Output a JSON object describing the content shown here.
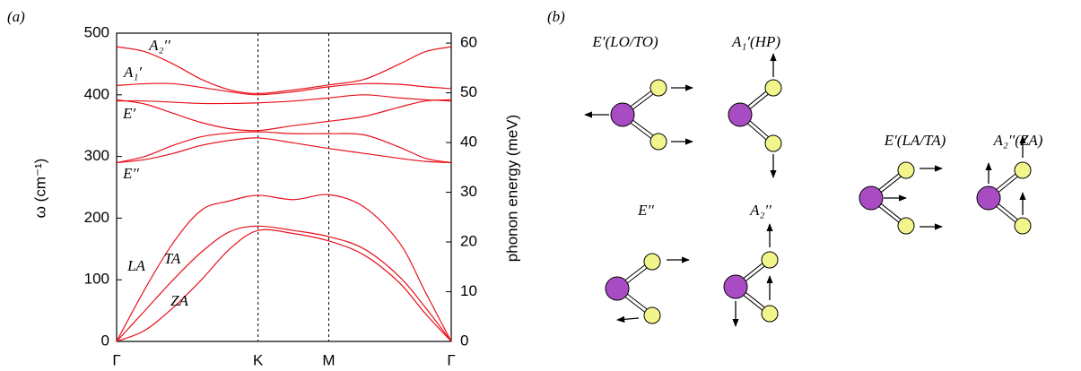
{
  "chart_data": {
    "type": "line",
    "panel_label": "(a)",
    "ylabel": "ω (cm⁻¹)",
    "y2label": "phonon energy (meV)",
    "x": [
      0,
      0.4,
      0.8,
      1.2,
      1.6,
      2,
      2.5,
      3,
      3.5,
      4,
      4.366,
      4.732
    ],
    "xlim": [
      0,
      4.732
    ],
    "xticks": [
      {
        "value": 0,
        "label": "Γ"
      },
      {
        "value": 2,
        "label": "K"
      },
      {
        "value": 3,
        "label": "M"
      },
      {
        "value": 4.732,
        "label": "Γ"
      }
    ],
    "ylim": [
      0,
      500
    ],
    "yticks": [
      0,
      100,
      200,
      300,
      400,
      500
    ],
    "y2lim": [
      0,
      62
    ],
    "y2ticks": [
      0,
      10,
      20,
      30,
      40,
      50,
      60
    ],
    "color": "#e8121b",
    "series": [
      {
        "values": [
          0,
          18,
          55,
          100,
          150,
          180,
          175,
          163,
          140,
          95,
          45,
          0
        ]
      },
      {
        "values": [
          0,
          50,
          100,
          145,
          178,
          187,
          180,
          170,
          150,
          105,
          55,
          0
        ]
      },
      {
        "values": [
          0,
          85,
          160,
          213,
          228,
          237,
          230,
          238,
          218,
          160,
          80,
          0
        ]
      },
      {
        "values": [
          290,
          295,
          305,
          318,
          326,
          330,
          322,
          313,
          305,
          297,
          292,
          290
        ]
      },
      {
        "values": [
          290,
          300,
          318,
          332,
          338,
          340,
          337,
          337,
          335,
          315,
          297,
          290
        ]
      },
      {
        "values": [
          392,
          385,
          370,
          355,
          345,
          342,
          350,
          357,
          365,
          380,
          390,
          392
        ]
      },
      {
        "values": [
          390,
          390,
          388,
          386,
          386,
          387,
          390,
          395,
          400,
          395,
          392,
          390
        ]
      },
      {
        "values": [
          415,
          418,
          418,
          412,
          405,
          400,
          405,
          413,
          418,
          417,
          413,
          410
        ]
      },
      {
        "values": [
          478,
          470,
          450,
          425,
          408,
          402,
          408,
          416,
          425,
          450,
          470,
          478
        ]
      }
    ],
    "annotations": [
      "A₂′′",
      "A₁′",
      "E′",
      "E′′",
      "LA",
      "TA",
      "ZA"
    ]
  },
  "diagram": {
    "panel_label": "(b)",
    "modes": [
      "E′(LO/TO)",
      "A₁′(HP)",
      "E′′",
      "A₂′′",
      "E′(LA/TA)",
      "A₂′′(ZA)"
    ]
  }
}
